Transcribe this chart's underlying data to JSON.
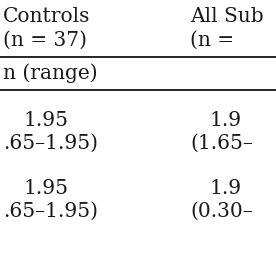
{
  "col1_header_line1": "Controls",
  "col1_header_line2": "(n = 37)",
  "col2_header_line1": "All Sub",
  "col2_header_line2": "(n = ",
  "row_header": "n (range)",
  "row1_col1_val": "1.95",
  "row1_col1_range": ".65–1.95)",
  "row1_col2_val": "1.9",
  "row1_col2_range": "(1.65–",
  "row2_col1_val": "1.95",
  "row2_col1_range": ".65–1.95)",
  "row2_col2_val": "1.9",
  "row2_col2_range": "(0.30–",
  "bg_color": "#ffffff",
  "text_color": "#1a1a1a",
  "line_color": "#000000",
  "font_size": 14.5
}
